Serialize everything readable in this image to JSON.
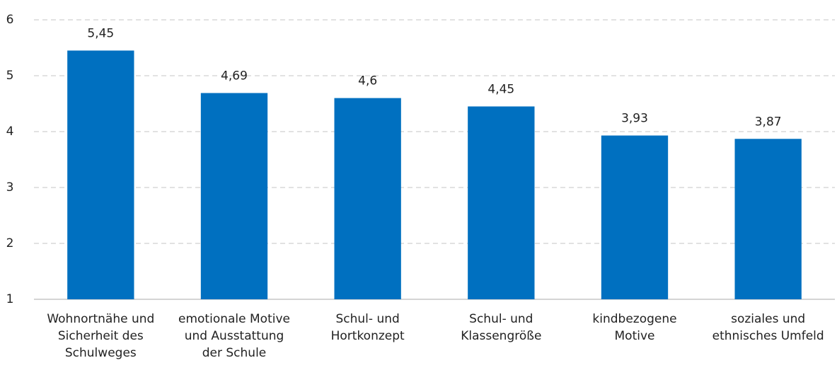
{
  "chart_data": {
    "type": "bar",
    "categories": [
      "Wohnortnähe und\nSicherheit des\nSchulweges",
      "emotionale Motive\nund Ausstattung\nder Schule",
      "Schul- und\nHortkonzept",
      "Schul- und\nKlassengröße",
      "kindbezogene\nMotive",
      "soziales und\nethnisches Umfeld"
    ],
    "values": [
      5.45,
      4.69,
      4.6,
      4.45,
      3.93,
      3.87
    ],
    "value_labels": [
      "5,45",
      "4,69",
      "4,6",
      "4,45",
      "3,93",
      "3,87"
    ],
    "color": "#0070c0",
    "ylim": [
      1,
      6
    ],
    "yticks": [
      1,
      2,
      3,
      4,
      5,
      6
    ],
    "grid": true
  }
}
